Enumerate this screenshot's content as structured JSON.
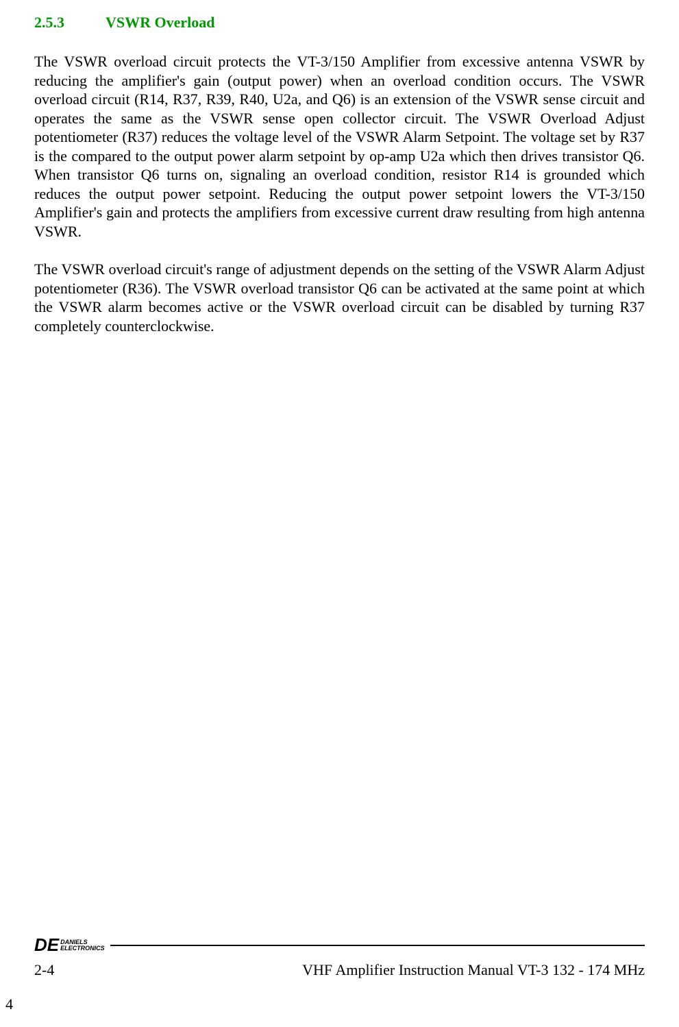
{
  "section": {
    "number": "2.5.3",
    "title": "VSWR Overload",
    "title_color": "#009900",
    "fontsize": 22
  },
  "paragraphs": {
    "p1": "The VSWR overload circuit protects the VT-3/150 Amplifier from excessive antenna VSWR by reducing the amplifier's gain (output power) when an overload condition occurs.  The VSWR overload circuit (R14, R37, R39, R40, U2a, and Q6) is an extension of the VSWR sense circuit and operates the same as the VSWR sense open collector circuit.  The VSWR Overload Adjust potentiometer (R37) reduces the voltage level of the VSWR Alarm Setpoint.  The voltage set by R37 is the compared to the output power alarm setpoint by op-amp U2a which then drives transistor Q6.  When transistor Q6 turns on, signaling an overload condition, resistor R14 is grounded which reduces the output power setpoint. Reducing the output power setpoint lowers the VT-3/150 Amplifier's gain and protects the amplifiers from excessive current draw resulting from high antenna VSWR.",
    "p2": "The VSWR overload circuit's range of adjustment depends on the setting of the VSWR Alarm Adjust potentiometer (R36).  The VSWR overload transistor Q6 can be activated at the same point at which the VSWR alarm becomes active or the VSWR overload circuit can be disabled by turning R37 completely counterclockwise."
  },
  "footer": {
    "logo_de": "DE",
    "logo_line1": "DANIELS",
    "logo_line2": "ELECTRONICS",
    "page_number": "2-4",
    "manual_title": "VHF Amplifier Instruction Manual VT-3 132 - 174 MHz",
    "corner_page": "4"
  },
  "colors": {
    "section_green": "#009900",
    "body_text": "#000000",
    "background": "#ffffff"
  },
  "typography": {
    "body_font": "Times New Roman",
    "logo_font": "Arial",
    "body_size": 22,
    "logo_de_size": 26,
    "logo_small_size": 9
  }
}
